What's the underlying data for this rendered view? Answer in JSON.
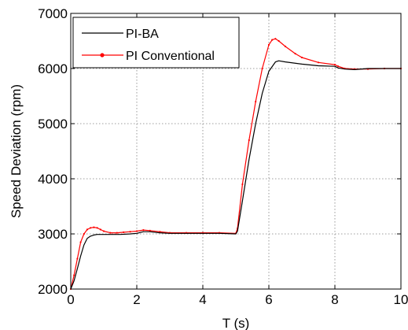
{
  "chart_data": {
    "type": "line",
    "title": "",
    "xlabel": "T (s)",
    "ylabel": "Speed Deviation (rpm)",
    "xlim": [
      0,
      10
    ],
    "ylim": [
      2000,
      7000
    ],
    "xticks": [
      0,
      2,
      4,
      6,
      8,
      10
    ],
    "yticks": [
      2000,
      3000,
      4000,
      5000,
      6000,
      7000
    ],
    "xtick_labels": [
      "0",
      "2",
      "4",
      "6",
      "8",
      "10"
    ],
    "ytick_labels": [
      "2000",
      "3000",
      "4000",
      "5000",
      "6000",
      "7000"
    ],
    "grid": true,
    "legend_position": "top-left",
    "series": [
      {
        "name": "PI-BA",
        "color": "#000000",
        "marker": "none",
        "x": [
          0.0,
          0.1,
          0.2,
          0.3,
          0.4,
          0.5,
          0.6,
          0.7,
          0.8,
          1.0,
          1.2,
          1.5,
          1.8,
          2.0,
          2.2,
          2.4,
          2.7,
          3.0,
          3.5,
          4.0,
          4.5,
          5.0,
          5.05,
          5.2,
          5.4,
          5.6,
          5.8,
          6.0,
          6.2,
          6.3,
          6.5,
          7.0,
          7.5,
          8.0,
          8.1,
          8.3,
          8.6,
          9.0,
          9.5,
          10.0
        ],
        "y": [
          2000,
          2150,
          2370,
          2600,
          2800,
          2920,
          2960,
          2980,
          2990,
          2990,
          2990,
          2990,
          3000,
          3010,
          3040,
          3040,
          3020,
          3010,
          3010,
          3010,
          3010,
          3000,
          3050,
          3600,
          4350,
          5000,
          5550,
          5950,
          6120,
          6140,
          6120,
          6080,
          6050,
          6040,
          6010,
          5990,
          5980,
          6000,
          6000,
          6000
        ]
      },
      {
        "name": "PI Conventional",
        "color": "#ff0000",
        "marker": "dot",
        "x": [
          0.0,
          0.1,
          0.2,
          0.3,
          0.4,
          0.5,
          0.6,
          0.7,
          0.8,
          0.9,
          1.0,
          1.2,
          1.4,
          1.6,
          1.8,
          2.0,
          2.2,
          2.4,
          2.7,
          3.0,
          3.5,
          4.0,
          4.5,
          5.0,
          5.05,
          5.2,
          5.4,
          5.6,
          5.8,
          6.0,
          6.1,
          6.2,
          6.3,
          6.5,
          6.8,
          7.0,
          7.5,
          8.0,
          8.1,
          8.3,
          8.6,
          9.0,
          9.5,
          10.0
        ],
        "y": [
          2000,
          2250,
          2550,
          2850,
          3000,
          3080,
          3110,
          3120,
          3110,
          3080,
          3050,
          3020,
          3020,
          3030,
          3040,
          3050,
          3070,
          3060,
          3040,
          3020,
          3020,
          3020,
          3020,
          3010,
          3100,
          3900,
          4700,
          5400,
          6000,
          6430,
          6520,
          6540,
          6500,
          6400,
          6270,
          6200,
          6110,
          6070,
          6040,
          6000,
          5990,
          5990,
          6000,
          6000
        ]
      }
    ]
  }
}
